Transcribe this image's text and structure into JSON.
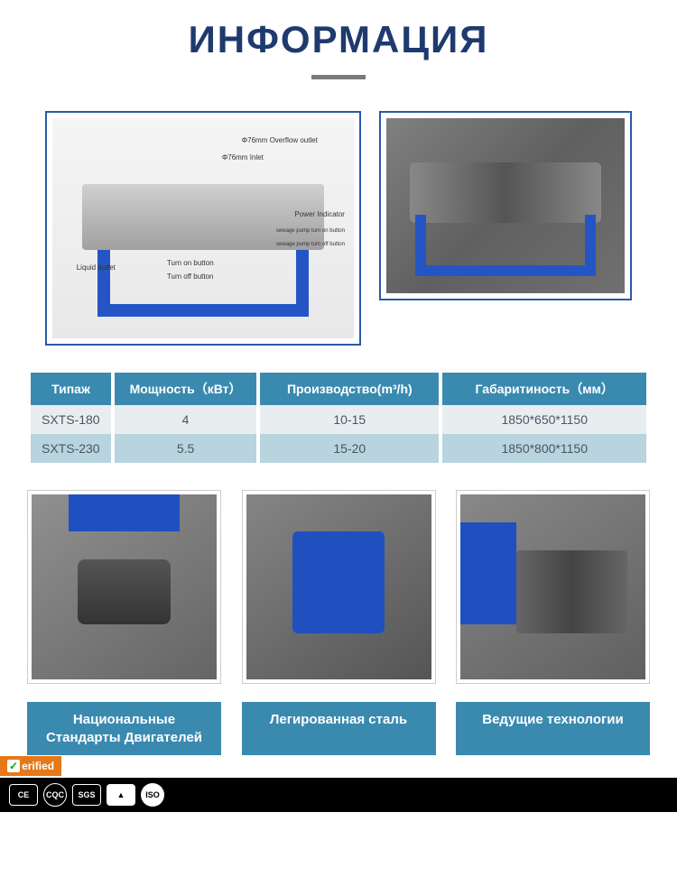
{
  "colors": {
    "title": "#1e3a6e",
    "underline": "#7a7a7a",
    "img_border": "#2a5aa8",
    "machine_frame": "#2555c5",
    "th_bg": "#3a8ab0",
    "row1_bg": "#e8eef0",
    "row2_bg": "#b8d4de",
    "cell_text": "#4a5560",
    "label_bg": "#3a8ab0",
    "verified_bg": "#e67817"
  },
  "header": {
    "title": "ИНФОРМАЦИЯ"
  },
  "diagram_labels": {
    "overflow": "Φ76mm Overflow outlet",
    "inlet": "Φ76mm Inlet",
    "power": "Power Indicator",
    "pump_on": "sewage pump turn on button",
    "pump_off": "sewage pump turn off button",
    "turn_on": "Turn on button",
    "turn_off": "Turn off button",
    "liquid": "Liquid outlet"
  },
  "table": {
    "headers": [
      "Типаж",
      "Мощность（кВт）",
      "Производство(m³/h)",
      "Габаритиность（мм）"
    ],
    "rows": [
      [
        "SXTS-180",
        "4",
        "10-15",
        "1850*650*1150"
      ],
      [
        "SXTS-230",
        "5.5",
        "15-20",
        "1850*800*1150"
      ]
    ],
    "col_widths": [
      "90px",
      "160px",
      "200px",
      "230px"
    ]
  },
  "labels": [
    "Национальные Стандарты Двигателей",
    "Легированная сталь",
    "Ведущие технологии"
  ],
  "footer": {
    "verified": "erified",
    "badges": [
      "CE",
      "CQC",
      "SGS",
      "▲",
      "ISO"
    ]
  }
}
